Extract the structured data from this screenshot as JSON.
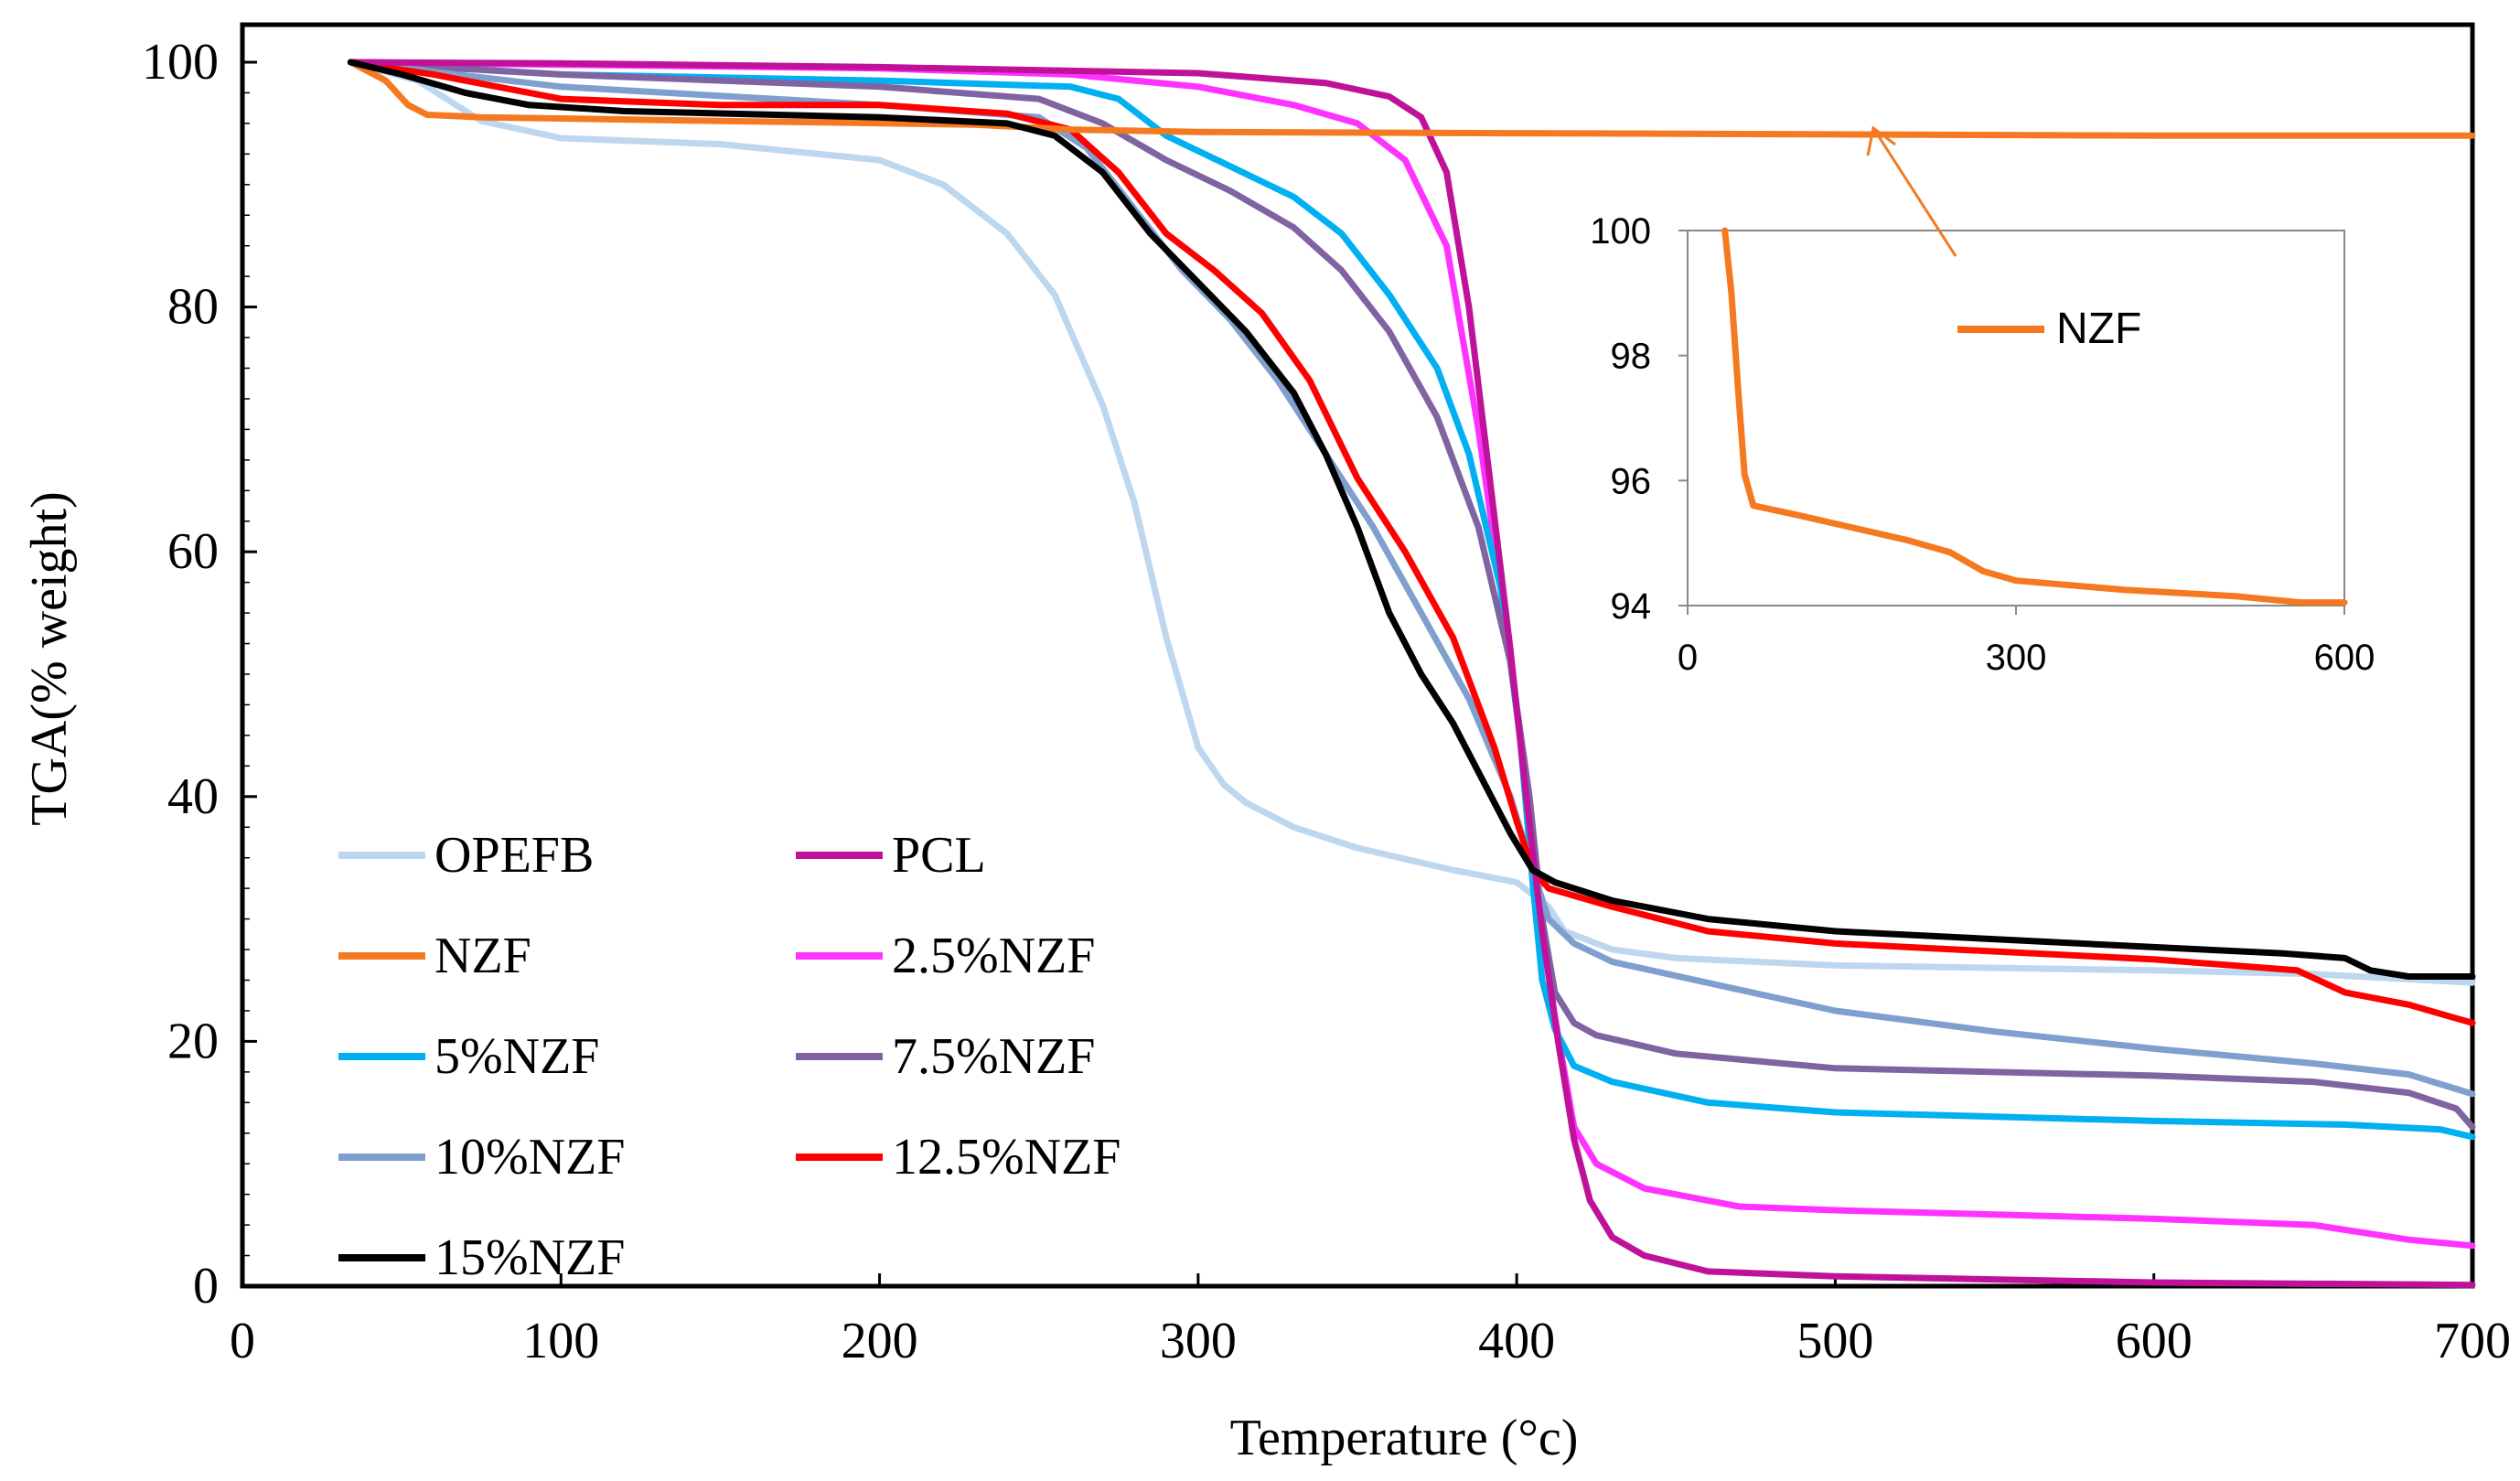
{
  "chart_data": {
    "type": "line",
    "xlabel": "Temperature (°c)",
    "ylabel": "TGA(% weight)",
    "xlim": [
      0,
      700
    ],
    "ylim": [
      0,
      100
    ],
    "xticks": [
      "0",
      "100",
      "200",
      "300",
      "400",
      "500",
      "600",
      "700"
    ],
    "yticks": [
      "0",
      "20",
      "40",
      "60",
      "80",
      "100"
    ],
    "legend_position": "bottom-left",
    "series": [
      {
        "name": "OPEFB",
        "color": "#BDD7EE",
        "points": [
          [
            34,
            100
          ],
          [
            55,
            98.5
          ],
          [
            75,
            95.2
          ],
          [
            100,
            93.8
          ],
          [
            150,
            93.3
          ],
          [
            200,
            92
          ],
          [
            220,
            90
          ],
          [
            240,
            86
          ],
          [
            255,
            81
          ],
          [
            270,
            72
          ],
          [
            280,
            64
          ],
          [
            290,
            53
          ],
          [
            300,
            44
          ],
          [
            308,
            41
          ],
          [
            315,
            39.5
          ],
          [
            330,
            37.5
          ],
          [
            350,
            35.8
          ],
          [
            380,
            34
          ],
          [
            400,
            33
          ],
          [
            410,
            31
          ],
          [
            415,
            29
          ],
          [
            430,
            27.5
          ],
          [
            450,
            26.8
          ],
          [
            500,
            26.2
          ],
          [
            600,
            25.8
          ],
          [
            650,
            25.5
          ],
          [
            700,
            24.8
          ]
        ]
      },
      {
        "name": "PCL",
        "color": "#C0119B",
        "points": [
          [
            34,
            100
          ],
          [
            100,
            99.9
          ],
          [
            200,
            99.6
          ],
          [
            300,
            99.1
          ],
          [
            340,
            98.3
          ],
          [
            360,
            97.2
          ],
          [
            370,
            95.5
          ],
          [
            378,
            91
          ],
          [
            385,
            80
          ],
          [
            392,
            65
          ],
          [
            398,
            52
          ],
          [
            403,
            40
          ],
          [
            408,
            29
          ],
          [
            413,
            20
          ],
          [
            418,
            12
          ],
          [
            423,
            7
          ],
          [
            430,
            4
          ],
          [
            440,
            2.5
          ],
          [
            460,
            1.2
          ],
          [
            500,
            0.8
          ],
          [
            600,
            0.3
          ],
          [
            700,
            0.1
          ]
        ]
      },
      {
        "name": "NZF",
        "color": "#F47920",
        "points": [
          [
            34,
            100
          ],
          [
            45,
            98.5
          ],
          [
            52,
            96.5
          ],
          [
            58,
            95.7
          ],
          [
            75,
            95.5
          ],
          [
            150,
            95.2
          ],
          [
            230,
            94.9
          ],
          [
            260,
            94.5
          ],
          [
            300,
            94.3
          ],
          [
            400,
            94.2
          ],
          [
            500,
            94.1
          ],
          [
            600,
            94.0
          ],
          [
            700,
            94.0
          ]
        ]
      },
      {
        "name": "2.5%NZF",
        "color": "#FF33FF",
        "points": [
          [
            34,
            100
          ],
          [
            100,
            99.8
          ],
          [
            200,
            99.5
          ],
          [
            260,
            99
          ],
          [
            300,
            98
          ],
          [
            330,
            96.5
          ],
          [
            350,
            95
          ],
          [
            365,
            92
          ],
          [
            378,
            85
          ],
          [
            388,
            70
          ],
          [
            395,
            57
          ],
          [
            401,
            45
          ],
          [
            406,
            33
          ],
          [
            412,
            22
          ],
          [
            418,
            13
          ],
          [
            425,
            10
          ],
          [
            440,
            8
          ],
          [
            470,
            6.5
          ],
          [
            500,
            6.2
          ],
          [
            600,
            5.5
          ],
          [
            650,
            5
          ],
          [
            680,
            3.8
          ],
          [
            700,
            3.3
          ]
        ]
      },
      {
        "name": "5%NZF",
        "color": "#00B0F0",
        "points": [
          [
            34,
            100
          ],
          [
            100,
            99
          ],
          [
            200,
            98.5
          ],
          [
            260,
            98
          ],
          [
            275,
            97
          ],
          [
            290,
            94
          ],
          [
            310,
            91.5
          ],
          [
            330,
            89
          ],
          [
            345,
            86
          ],
          [
            360,
            81
          ],
          [
            375,
            75
          ],
          [
            385,
            68
          ],
          [
            395,
            57
          ],
          [
            401,
            45
          ],
          [
            405,
            33
          ],
          [
            408,
            25
          ],
          [
            412,
            21
          ],
          [
            418,
            18
          ],
          [
            430,
            16.7
          ],
          [
            460,
            15
          ],
          [
            500,
            14.2
          ],
          [
            600,
            13.5
          ],
          [
            660,
            13.2
          ],
          [
            690,
            12.8
          ],
          [
            700,
            12.2
          ]
        ]
      },
      {
        "name": "7.5%NZF",
        "color": "#8064A2",
        "points": [
          [
            34,
            100
          ],
          [
            100,
            99
          ],
          [
            200,
            98
          ],
          [
            250,
            97
          ],
          [
            270,
            95
          ],
          [
            290,
            92
          ],
          [
            310,
            89.5
          ],
          [
            330,
            86.5
          ],
          [
            345,
            83
          ],
          [
            360,
            78
          ],
          [
            375,
            71
          ],
          [
            388,
            62
          ],
          [
            398,
            51
          ],
          [
            404,
            40
          ],
          [
            408,
            30
          ],
          [
            412,
            24
          ],
          [
            418,
            21.5
          ],
          [
            425,
            20.5
          ],
          [
            450,
            19
          ],
          [
            500,
            17.8
          ],
          [
            600,
            17.2
          ],
          [
            650,
            16.7
          ],
          [
            680,
            15.8
          ],
          [
            695,
            14.5
          ],
          [
            700,
            13
          ]
        ]
      },
      {
        "name": "10%NZF",
        "color": "#7F9FCF",
        "points": [
          [
            34,
            100
          ],
          [
            100,
            98
          ],
          [
            200,
            96.5
          ],
          [
            250,
            95.5
          ],
          [
            265,
            93
          ],
          [
            280,
            88
          ],
          [
            295,
            83
          ],
          [
            310,
            79
          ],
          [
            325,
            74
          ],
          [
            340,
            68
          ],
          [
            355,
            62
          ],
          [
            370,
            55
          ],
          [
            385,
            48
          ],
          [
            398,
            40
          ],
          [
            405,
            34
          ],
          [
            410,
            30
          ],
          [
            418,
            28
          ],
          [
            430,
            26.5
          ],
          [
            500,
            22.5
          ],
          [
            550,
            20.8
          ],
          [
            600,
            19.4
          ],
          [
            650,
            18.2
          ],
          [
            680,
            17.3
          ],
          [
            700,
            15.7
          ]
        ]
      },
      {
        "name": "12.5%NZF",
        "color": "#FF0000",
        "points": [
          [
            34,
            100
          ],
          [
            60,
            99
          ],
          [
            80,
            98
          ],
          [
            100,
            97
          ],
          [
            150,
            96.5
          ],
          [
            200,
            96.5
          ],
          [
            240,
            95.8
          ],
          [
            260,
            94.5
          ],
          [
            275,
            91
          ],
          [
            290,
            86
          ],
          [
            305,
            83
          ],
          [
            320,
            79.5
          ],
          [
            335,
            74
          ],
          [
            350,
            66
          ],
          [
            365,
            60
          ],
          [
            380,
            53
          ],
          [
            393,
            44
          ],
          [
            400,
            38
          ],
          [
            405,
            34
          ],
          [
            410,
            32.5
          ],
          [
            430,
            31
          ],
          [
            460,
            29
          ],
          [
            500,
            28
          ],
          [
            600,
            26.7
          ],
          [
            645,
            25.8
          ],
          [
            660,
            24
          ],
          [
            680,
            23
          ],
          [
            700,
            21.5
          ]
        ]
      },
      {
        "name": "15%NZF",
        "color": "#000000",
        "points": [
          [
            34,
            100
          ],
          [
            50,
            99
          ],
          [
            70,
            97.5
          ],
          [
            90,
            96.5
          ],
          [
            120,
            96
          ],
          [
            200,
            95.5
          ],
          [
            240,
            95
          ],
          [
            255,
            94
          ],
          [
            270,
            91
          ],
          [
            285,
            86
          ],
          [
            300,
            82
          ],
          [
            315,
            78
          ],
          [
            330,
            73
          ],
          [
            340,
            68
          ],
          [
            350,
            62
          ],
          [
            360,
            55
          ],
          [
            370,
            50
          ],
          [
            380,
            46
          ],
          [
            390,
            41
          ],
          [
            398,
            37
          ],
          [
            405,
            34
          ],
          [
            412,
            33
          ],
          [
            430,
            31.5
          ],
          [
            460,
            30
          ],
          [
            500,
            29
          ],
          [
            600,
            27.7
          ],
          [
            640,
            27.2
          ],
          [
            660,
            26.8
          ],
          [
            668,
            25.8
          ],
          [
            680,
            25.3
          ],
          [
            700,
            25.3
          ]
        ]
      }
    ],
    "inset": {
      "title": "NZF",
      "series_name": "NZF",
      "color": "#F47920",
      "xlim": [
        0,
        600
      ],
      "ylim": [
        94,
        100
      ],
      "xticks": [
        "0",
        "300",
        "600"
      ],
      "yticks": [
        "94",
        "96",
        "98",
        "100"
      ],
      "points": [
        [
          34,
          100
        ],
        [
          40,
          99
        ],
        [
          46,
          97.5
        ],
        [
          52,
          96.1
        ],
        [
          60,
          95.6
        ],
        [
          100,
          95.45
        ],
        [
          150,
          95.25
        ],
        [
          200,
          95.05
        ],
        [
          240,
          94.85
        ],
        [
          270,
          94.55
        ],
        [
          300,
          94.4
        ],
        [
          400,
          94.25
        ],
        [
          500,
          94.15
        ],
        [
          560,
          94.05
        ],
        [
          600,
          94.05
        ]
      ]
    }
  }
}
